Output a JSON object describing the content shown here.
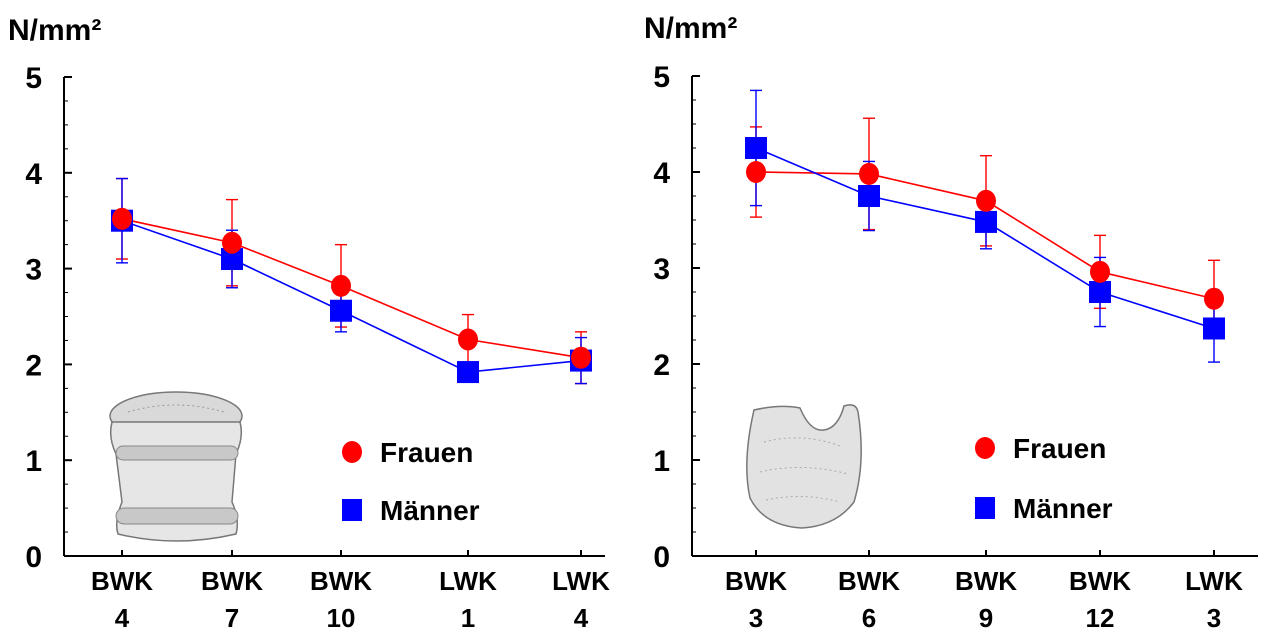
{
  "chart_data": [
    {
      "type": "line",
      "ylabel": "N/mm²",
      "ylim": [
        0,
        5
      ],
      "yticks": [
        "0",
        "1",
        "2",
        "3",
        "4",
        "5"
      ],
      "categories": [
        [
          "BWK",
          "4"
        ],
        [
          "BWK",
          "7"
        ],
        [
          "BWK",
          "10"
        ],
        [
          "LWK",
          "1"
        ],
        [
          "LWK",
          "4"
        ]
      ],
      "series": [
        {
          "name": "Frauen",
          "marker": "circle",
          "color": "#ff0000",
          "values": [
            3.52,
            3.27,
            2.82,
            2.26,
            2.07
          ],
          "err": [
            0.42,
            0.45,
            0.43,
            0.26,
            0.27
          ]
        },
        {
          "name": "Männer",
          "marker": "square",
          "color": "#0000ff",
          "values": [
            3.5,
            3.1,
            2.56,
            1.92,
            2.04
          ],
          "err": [
            0.44,
            0.3,
            0.22,
            0.1,
            0.24
          ]
        }
      ],
      "legend": "center-right",
      "grid": false,
      "illustration": "vertebral-body-side-view"
    },
    {
      "type": "line",
      "ylabel": "N/mm²",
      "ylim": [
        0,
        5
      ],
      "yticks": [
        "0",
        "1",
        "2",
        "3",
        "4",
        "5"
      ],
      "categories": [
        [
          "BWK",
          "3"
        ],
        [
          "BWK",
          "6"
        ],
        [
          "BWK",
          "9"
        ],
        [
          "BWK",
          "12"
        ],
        [
          "LWK",
          "3"
        ]
      ],
      "series": [
        {
          "name": "Frauen",
          "marker": "circle",
          "color": "#ff0000",
          "values": [
            4.0,
            3.98,
            3.7,
            2.96,
            2.68
          ],
          "err": [
            0.47,
            0.58,
            0.47,
            0.38,
            0.4
          ]
        },
        {
          "name": "Männer",
          "marker": "square",
          "color": "#0000ff",
          "values": [
            4.25,
            3.75,
            3.48,
            2.75,
            2.37
          ],
          "err": [
            0.6,
            0.36,
            0.28,
            0.36,
            0.35
          ]
        }
      ],
      "legend": "center-right",
      "grid": false,
      "illustration": "vertebral-body-cross-section"
    }
  ]
}
